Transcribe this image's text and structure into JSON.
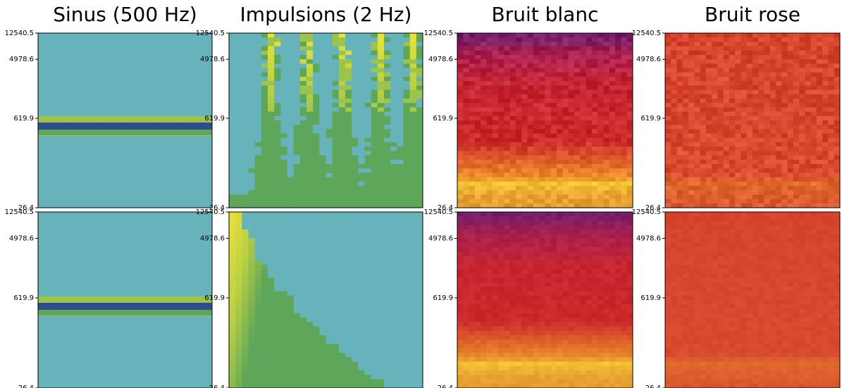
{
  "chart_data": [
    {
      "type": "spectrogram",
      "title": "Sinus (500 Hz)",
      "ylim": [
        26.4,
        12540.5
      ],
      "yticks": [
        26.4,
        619.9,
        4978.6,
        12540.5
      ],
      "ylog": true
    },
    {
      "type": "spectrogram",
      "title": "Impulsions (2 Hz)",
      "ylim": [
        26.4,
        12540.5
      ],
      "yticks": [
        26.4,
        619.9,
        4978.6,
        12540.5
      ],
      "ylog": true
    },
    {
      "type": "spectrogram",
      "title": "Bruit blanc",
      "ylim": [
        26.4,
        12540.5
      ],
      "yticks": [
        26.4,
        619.9,
        4978.6,
        12540.5
      ],
      "ylog": true
    },
    {
      "type": "spectrogram",
      "title": "Bruit rose",
      "ylim": [
        26.4,
        12540.5
      ],
      "yticks": [
        26.4,
        619.9,
        4978.6,
        12540.5
      ],
      "ylog": true
    },
    {
      "type": "spectrogram",
      "ylim": [
        26.4,
        12540.5
      ],
      "yticks": [
        26.4,
        619.9,
        4978.6,
        12540.5
      ],
      "ylog": true
    },
    {
      "type": "spectrogram",
      "ylim": [
        26.4,
        12540.5
      ],
      "yticks": [
        26.4,
        619.9,
        4978.6,
        12540.5
      ],
      "ylog": true
    },
    {
      "type": "spectrogram",
      "ylim": [
        26.4,
        12540.5
      ],
      "yticks": [
        26.4,
        619.9,
        4978.6,
        12540.5
      ],
      "ylog": true
    },
    {
      "type": "spectrogram",
      "ylim": [
        26.4,
        12540.5
      ],
      "yticks": [
        26.4,
        619.9,
        4978.6,
        12540.5
      ],
      "ylog": true
    }
  ]
}
